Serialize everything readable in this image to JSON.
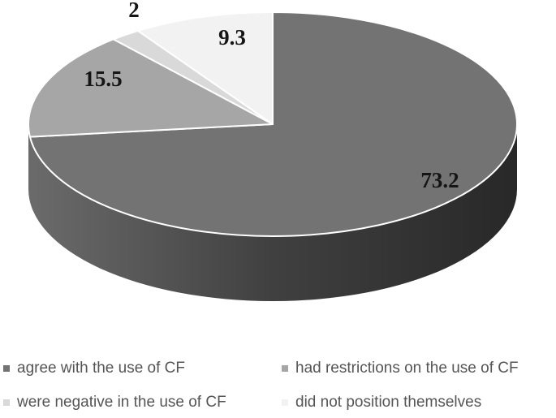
{
  "chart_data": {
    "type": "pie",
    "style": "3d-grayscale",
    "title": "",
    "categories": [
      "agree with the use of CF",
      "had restrictions on the use of CF",
      "were negative in the use of CF",
      "did not position themselves"
    ],
    "values": [
      73.2,
      15.5,
      2,
      9.3
    ],
    "data_labels": [
      "73.2",
      "15.5",
      "2",
      "9.3"
    ],
    "colors": [
      "#737373",
      "#a6a6a6",
      "#d9d9d9",
      "#f2f2f2"
    ],
    "side_gradient": [
      "#6b6b6b",
      "#404040",
      "#282828"
    ],
    "separator_color": "#ffffff",
    "label_color": "#151515",
    "legend_position": "bottom",
    "legend_text_color": "#555555",
    "start_angle_deg": 0,
    "direction": "clockwise"
  },
  "legend": {
    "items": [
      {
        "label": "agree with the use of CF"
      },
      {
        "label": "had restrictions on the use of CF"
      },
      {
        "label": "were negative in the use of CF"
      },
      {
        "label": "did not position themselves"
      }
    ]
  }
}
